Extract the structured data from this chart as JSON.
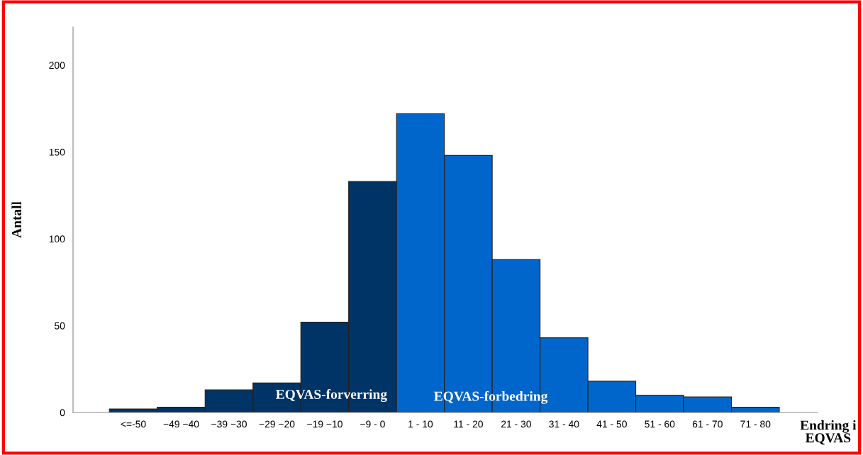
{
  "chart_data": {
    "type": "bar",
    "xlabel": "Endring i\nEQVAS",
    "ylabel": "Antall",
    "categories": [
      "<=-50",
      "−49 −40",
      "−39 −30",
      "−29 −20",
      "−19 −10",
      "−9 - 0",
      "1 - 10",
      "11 - 20",
      "21 - 30",
      "31 - 40",
      "41 - 50",
      "51 - 60",
      "61 - 70",
      "71 - 80"
    ],
    "values": [
      2,
      3,
      13,
      17,
      52,
      133,
      172,
      148,
      88,
      43,
      18,
      10,
      9,
      3
    ],
    "colors": [
      "#003366",
      "#003366",
      "#003366",
      "#003366",
      "#003366",
      "#003366",
      "#0066cc",
      "#0066cc",
      "#0066cc",
      "#0066cc",
      "#0066cc",
      "#0066cc",
      "#0066cc",
      "#0066cc"
    ],
    "ylim": [
      0,
      222
    ],
    "yticks": [
      0,
      50,
      100,
      150,
      200
    ],
    "grid": false,
    "annotations": [
      "EQVAS-forverring",
      "EQVAS-forbedring"
    ]
  }
}
